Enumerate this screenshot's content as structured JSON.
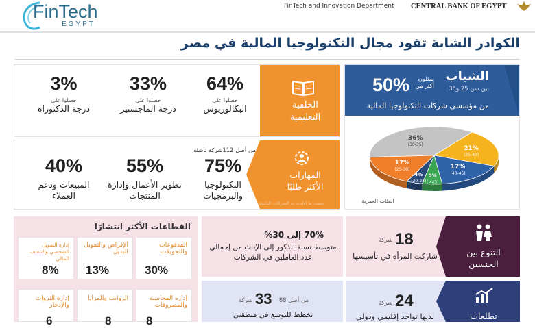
{
  "header": {
    "logo_main": "FinTech",
    "logo_sub": "EGYPT",
    "department": "FinTech and Innovation Department",
    "bank": "CENTRAL BANK OF EGYPT"
  },
  "title": "الكوادر الشابة تقود مجال التكنولوجيا المالية في مصر",
  "youth": {
    "heading": "الشباب",
    "age_range": "بين سن 25 و35",
    "pct": "50%",
    "represent": "يمثلون أكثر من",
    "desc": "من مؤسسي شركات التكنولوجيا المالية",
    "chart_caption": "الفئات العمرية"
  },
  "education": {
    "label": "الخلفية التعليمية",
    "items": [
      {
        "pct": "64%",
        "sub": "حصلوا على",
        "label": "البكالوريوس"
      },
      {
        "pct": "33%",
        "sub": "حصلوا على",
        "label": "درجة الماجستير"
      },
      {
        "pct": "3%",
        "sub": "حصلوا على",
        "label": "درجة الدكتوراه"
      }
    ]
  },
  "skills": {
    "label": "المهارات الأكثر طلبًا",
    "note": "حسب ما أفادت به الشركات الناشئة",
    "from_note": "من أصل 112شركة ناشئة",
    "items": [
      {
        "pct": "75%",
        "label": "التكنولوجيا والبرمجيات"
      },
      {
        "pct": "55%",
        "label": "تطوير الأعمال وإدارة المنتجات"
      },
      {
        "pct": "40%",
        "label": "المبيعات ودعم العملاء"
      }
    ]
  },
  "sectors": {
    "heading": "القطاعات الأكثر انتشارًا",
    "items": [
      {
        "title": "المدفوعات والتحويلات",
        "pct": "30%"
      },
      {
        "title": "الإقراض والتمويل البديل",
        "pct": "13%"
      },
      {
        "title": "إدارة التمويل الشخصي والتثقيف المالي",
        "pct": "8%"
      },
      {
        "title": "إدارة المحاسبة والمصروفات",
        "pct": "8"
      },
      {
        "title": "الرواتب والمزايا",
        "pct": "8"
      },
      {
        "title": "إدارة الثروات والإدخار",
        "pct": "6"
      }
    ]
  },
  "gender": {
    "label": "التنوع بين الجنسين",
    "count": "18",
    "count_unit": "شركة",
    "count_desc": "شاركت المرأة في تأسيسها",
    "ratio": "70% إلى 30%",
    "ratio_desc": "متوسط نسبة الذكور إلى الإناث من إجمالي عدد العاملين في الشركات"
  },
  "aspirations": {
    "label": "تطلعات",
    "count": "24",
    "count_unit": "شركة",
    "count_desc": "لديها تواجد إقليمي ودولي",
    "count2": "33",
    "count2_unit": "شركة",
    "count2_from": "من أصل 88",
    "count2_desc": "تخطط للتوسع في منطقتي"
  },
  "chart_data": {
    "type": "pie",
    "title": "",
    "labels": [
      "(30-35)",
      "(35-40)",
      "(40-45)",
      "(>45)",
      "(20-25)",
      "(25-30)"
    ],
    "values": [
      36,
      21,
      17,
      5,
      4,
      17
    ],
    "colors": [
      "#c4c4c4",
      "#f5b41e",
      "#2f62a8",
      "#3aa652",
      "#2a4a7a",
      "#ee7e2a"
    ],
    "caption": "الفئات العمرية"
  }
}
